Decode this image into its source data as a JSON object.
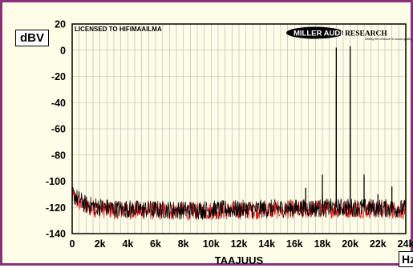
{
  "chart_data": {
    "type": "line",
    "title": "",
    "ylabel_unit": "dBV",
    "xlabel": "TAAJUUS",
    "xlabel_unit": "Hz",
    "watermark": "LICENSED TO HIFIMAAILMA",
    "logo": {
      "name": "MILLER AUDIO RESEARCH",
      "tagline": "Setting the measure of sound quality"
    },
    "xlim": [
      0,
      24000
    ],
    "ylim": [
      -140,
      20
    ],
    "xticks": [
      "0",
      "2k",
      "4k",
      "6k",
      "8k",
      "10k",
      "12k",
      "14k",
      "16k",
      "18k",
      "20k",
      "22k",
      "24k"
    ],
    "yticks": [
      "20",
      "0",
      "-20",
      "-40",
      "-60",
      "-80",
      "-100",
      "-120",
      "-140"
    ],
    "grid": true,
    "series": [
      {
        "color": "#e01010",
        "noise_floor": [
          [
            0,
            -112
          ],
          [
            1000,
            -120
          ],
          [
            3000,
            -122
          ],
          [
            8000,
            -123
          ],
          [
            14000,
            -122
          ],
          [
            20000,
            -121
          ],
          [
            24000,
            -122
          ]
        ],
        "peaks": [
          [
            16800,
            -116
          ],
          [
            18000,
            -110
          ]
        ]
      },
      {
        "color": "#000000",
        "noise_floor": [
          [
            0,
            -110
          ],
          [
            1000,
            -118
          ],
          [
            3000,
            -121
          ],
          [
            8000,
            -122
          ],
          [
            14000,
            -121
          ],
          [
            20000,
            -120
          ],
          [
            24000,
            -121
          ]
        ],
        "peaks": [
          [
            16800,
            -105
          ],
          [
            18000,
            -95
          ],
          [
            19000,
            2
          ],
          [
            19000,
            -22
          ],
          [
            20000,
            3
          ],
          [
            20000,
            -22
          ],
          [
            21000,
            -95
          ],
          [
            22000,
            -110
          ],
          [
            23000,
            -104
          ]
        ]
      }
    ],
    "colors": {
      "frame": "#8a2f7a",
      "background": "#fefde8",
      "grid": "#b4b4b4",
      "red_trace": "#e01010",
      "black_trace": "#000000"
    }
  }
}
